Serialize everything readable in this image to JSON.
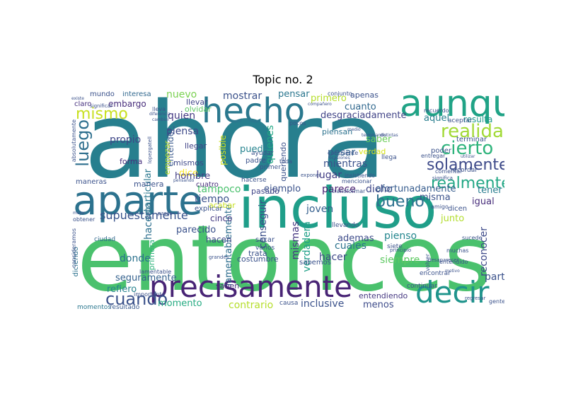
{
  "title": "Topic no. 2",
  "colors": {
    "background": "#ffffff",
    "palette": [
      "#440154",
      "#3b528b",
      "#21918c",
      "#5ec962",
      "#fde725"
    ]
  },
  "words": [
    {
      "text": "ahora",
      "color": "#277f8e"
    },
    {
      "text": "entonces",
      "color": "#4ac16d"
    },
    {
      "text": "incluso",
      "color": "#1f9e89"
    },
    {
      "text": "aparte",
      "color": "#2c728e"
    },
    {
      "text": "aunque",
      "color": "#20a386"
    },
    {
      "text": "hecho",
      "color": "#2a788e"
    },
    {
      "text": "precisamente",
      "color": "#482475"
    },
    {
      "text": "decir",
      "color": "#1f948c"
    },
    {
      "text": "realidad",
      "color": "#a2da37"
    },
    {
      "text": "cierto",
      "color": "#2fb47c"
    },
    {
      "text": "mismo",
      "color": "#c8e020"
    },
    {
      "text": "luego",
      "color": "#2e6f8e"
    },
    {
      "text": "solamente",
      "color": "#3e4a89"
    },
    {
      "text": "realmente",
      "color": "#22a785"
    },
    {
      "text": "bueno",
      "color": "#2d708e"
    },
    {
      "text": "cuando",
      "color": "#3b528b"
    },
    {
      "text": "supuestamente",
      "color": "#3a548c"
    },
    {
      "text": "nuevo",
      "color": "#7ad151"
    },
    {
      "text": "mundo",
      "color": "#3b528b"
    },
    {
      "text": "interesa",
      "color": "#31688e"
    },
    {
      "text": "claro",
      "color": "#46307e"
    },
    {
      "text": "embargo",
      "color": "#472d7b"
    },
    {
      "text": "propio",
      "color": "#3f4788"
    },
    {
      "text": "llevar",
      "color": "#404588"
    },
    {
      "text": "olvidar",
      "color": "#5ec962"
    },
    {
      "text": "quien",
      "color": "#443983"
    },
    {
      "text": "pensar",
      "color": "#2a768e"
    },
    {
      "text": "primero",
      "color": "#b5de2b"
    },
    {
      "text": "mostrar",
      "color": "#3b528b"
    },
    {
      "text": "cuanto",
      "color": "#31688e"
    },
    {
      "text": "desgraciadamente",
      "color": "#414487"
    },
    {
      "text": "aquel",
      "color": "#287d8e"
    },
    {
      "text": "resulta",
      "color": "#1f988b"
    },
    {
      "text": "entender",
      "color": "#38588c"
    },
    {
      "text": "piensa",
      "color": "#3e4989"
    },
    {
      "text": "dice",
      "color": "#fde725"
    },
    {
      "text": "posible",
      "color": "#d0e11c"
    },
    {
      "text": "puede",
      "color": "#25838e"
    },
    {
      "text": "quienes",
      "color": "#22a884"
    },
    {
      "text": "saber",
      "color": "#6ccd5a"
    },
    {
      "text": "verdad",
      "color": "#d8e219"
    },
    {
      "text": "pesar",
      "color": "#34618d"
    },
    {
      "text": "mientras",
      "color": "#3b528b"
    },
    {
      "text": "piensan",
      "color": "#2c728e"
    },
    {
      "text": "lugar",
      "color": "#433e85"
    },
    {
      "text": "parece",
      "color": "#481f70"
    },
    {
      "text": "dicho",
      "color": "#3f4788"
    },
    {
      "text": "afortunadamente",
      "color": "#365c8d"
    },
    {
      "text": "tener",
      "color": "#287c8e"
    },
    {
      "text": "misma",
      "color": "#3b528b"
    },
    {
      "text": "igual",
      "color": "#472c7a"
    },
    {
      "text": "junto",
      "color": "#b2dd2d"
    },
    {
      "text": "tampoco",
      "color": "#4ac16d"
    },
    {
      "text": "ejemplo",
      "color": "#3b528b"
    },
    {
      "text": "joven",
      "color": "#355f8d"
    },
    {
      "text": "pasado",
      "color": "#404688"
    },
    {
      "text": "tiempo",
      "color": "#3b528b"
    },
    {
      "text": "hombre",
      "color": "#433e85"
    },
    {
      "text": "forma",
      "color": "#472f7d"
    },
    {
      "text": "llegar",
      "color": "#414487"
    },
    {
      "text": "mismos",
      "color": "#3e4989"
    },
    {
      "text": "particular",
      "color": "#2a778e"
    },
    {
      "text": "parecido",
      "color": "#3b528b"
    },
    {
      "text": "hacerlo",
      "color": "#2d708e"
    },
    {
      "text": "donde",
      "color": "#2c728e"
    },
    {
      "text": "seguramente",
      "color": "#34618d"
    },
    {
      "text": "refiero",
      "color": "#26828e"
    },
    {
      "text": "momento",
      "color": "#25ab82"
    },
    {
      "text": "contrario",
      "color": "#b5de2b"
    },
    {
      "text": "lamentablemente",
      "color": "#2e6e8e"
    },
    {
      "text": "hacen",
      "color": "#3f4788"
    },
    {
      "text": "conseguir",
      "color": "#3c4f8a"
    },
    {
      "text": "mismas",
      "color": "#453781"
    },
    {
      "text": "verdadera",
      "color": "#1fa088"
    },
    {
      "text": "ademas",
      "color": "#3e4c8a"
    },
    {
      "text": "cuales",
      "color": "#2c738e"
    },
    {
      "text": "hacer",
      "color": "#3f4889"
    },
    {
      "text": "pienso",
      "color": "#24868e"
    },
    {
      "text": "siempre",
      "color": "#5ec962"
    },
    {
      "text": "parte",
      "color": "#3b528b"
    },
    {
      "text": "reconocer",
      "color": "#3e4a89"
    },
    {
      "text": "inclusive",
      "color": "#3b528b"
    },
    {
      "text": "menos",
      "color": "#3e4c8a"
    },
    {
      "text": "entendiendo",
      "color": "#453781"
    },
    {
      "text": "trata",
      "color": "#3b528b"
    },
    {
      "text": "dicen",
      "color": "#3b528b"
    },
    {
      "text": "cinco",
      "color": "#443a83"
    },
    {
      "text": "manera",
      "color": "#3b528b"
    },
    {
      "text": "maneras",
      "color": "#3b528b"
    },
    {
      "text": "cuatro",
      "color": "#472c7a"
    },
    {
      "text": "saben",
      "color": "#472d7b"
    },
    {
      "text": "costumbre",
      "color": "#3b528b"
    },
    {
      "text": "primera",
      "color": "#2fb47c"
    },
    {
      "text": "acabar",
      "color": "#c8e020"
    },
    {
      "text": "empezar",
      "color": "#b8de29"
    },
    {
      "text": "ciudad",
      "color": "#31688e"
    },
    {
      "text": "diciendo",
      "color": "#2c728e"
    },
    {
      "text": "momentos",
      "color": "#2a768e"
    },
    {
      "text": "resultado",
      "color": "#38588c"
    },
    {
      "text": "importante",
      "color": "#3b528b"
    },
    {
      "text": "obtener",
      "color": "#3b528b"
    },
    {
      "text": "consideramos",
      "color": "#3b528b"
    },
    {
      "text": "absolutamente",
      "color": "#3b528b"
    },
    {
      "text": "lleva",
      "color": "#3b528b"
    },
    {
      "text": "apenas",
      "color": "#3b528b"
    },
    {
      "text": "conjunto",
      "color": "#3b528b"
    },
    {
      "text": "recuerdo",
      "color": "#3b528b"
    },
    {
      "text": "aceptar",
      "color": "#3b528b"
    },
    {
      "text": "terminar",
      "color": "#3b528b"
    },
    {
      "text": "poder",
      "color": "#3b528b"
    },
    {
      "text": "llega",
      "color": "#3b528b"
    },
    {
      "text": "recordar",
      "color": "#3b528b"
    },
    {
      "text": "comentar",
      "color": "#3b528b"
    },
    {
      "text": "significa",
      "color": "#3b528b"
    },
    {
      "text": "transformar",
      "color": "#3b528b"
    },
    {
      "text": "mencionar",
      "color": "#3b528b"
    },
    {
      "text": "insistiendo",
      "color": "#3b528b"
    },
    {
      "text": "exponer",
      "color": "#3b528b"
    },
    {
      "text": "ayudar",
      "color": "#3b528b"
    },
    {
      "text": "explicar",
      "color": "#3b528b"
    },
    {
      "text": "hacerse",
      "color": "#3b528b"
    },
    {
      "text": "padre",
      "color": "#3b528b"
    },
    {
      "text": "primer",
      "color": "#3b528b"
    },
    {
      "text": "toda",
      "color": "#3b528b"
    },
    {
      "text": "consciente",
      "color": "#3b528b"
    },
    {
      "text": "queriendo",
      "color": "#3b528b"
    },
    {
      "text": "pocos",
      "color": "#3b528b"
    },
    {
      "text": "sacar",
      "color": "#3b528b"
    },
    {
      "text": "varios",
      "color": "#3b528b"
    },
    {
      "text": "sabemos",
      "color": "#3b528b"
    },
    {
      "text": "llevando",
      "color": "#3b528b"
    },
    {
      "text": "muchas",
      "color": "#3b528b"
    },
    {
      "text": "sucede",
      "color": "#3b528b"
    },
    {
      "text": "entendido",
      "color": "#3b528b"
    },
    {
      "text": "encontrar",
      "color": "#3b528b"
    },
    {
      "text": "continuar",
      "color": "#3b528b"
    },
    {
      "text": "causa",
      "color": "#3b528b"
    },
    {
      "text": "siete",
      "color": "#3b528b"
    },
    {
      "text": "volver",
      "color": "#3b528b"
    },
    {
      "text": "gente",
      "color": "#3b528b"
    },
    {
      "text": "regresar",
      "color": "#3b528b"
    },
    {
      "text": "amigo",
      "color": "#3b528b"
    },
    {
      "text": "entregar",
      "color": "#3b528b"
    },
    {
      "text": "utilizar",
      "color": "#3b528b"
    },
    {
      "text": "medio",
      "color": "#3b528b"
    },
    {
      "text": "desaparecer",
      "color": "#3b528b"
    },
    {
      "text": "lamentable",
      "color": "#3b528b"
    },
    {
      "text": "pasar",
      "color": "#3b528b"
    },
    {
      "text": "existe",
      "color": "#3b528b"
    },
    {
      "text": "significar",
      "color": "#3b528b"
    },
    {
      "text": "diferencia",
      "color": "#3b528b"
    },
    {
      "text": "cambiar",
      "color": "#3b528b"
    },
    {
      "text": "compañero",
      "color": "#3b528b"
    },
    {
      "text": "mejor",
      "color": "#3b528b"
    },
    {
      "text": "motivo",
      "color": "#3b528b"
    },
    {
      "text": "grandes",
      "color": "#3b528b"
    },
    {
      "text": "principio",
      "color": "#3b528b"
    },
    {
      "text": "ocasiones",
      "color": "#3b528b"
    },
    {
      "text": "distintas",
      "color": "#3b528b"
    },
    {
      "text": "terminando",
      "color": "#3b528b"
    },
    {
      "text": "pensando",
      "color": "#3b528b"
    },
    {
      "text": "lopezgatell",
      "color": "#3b528b"
    }
  ]
}
